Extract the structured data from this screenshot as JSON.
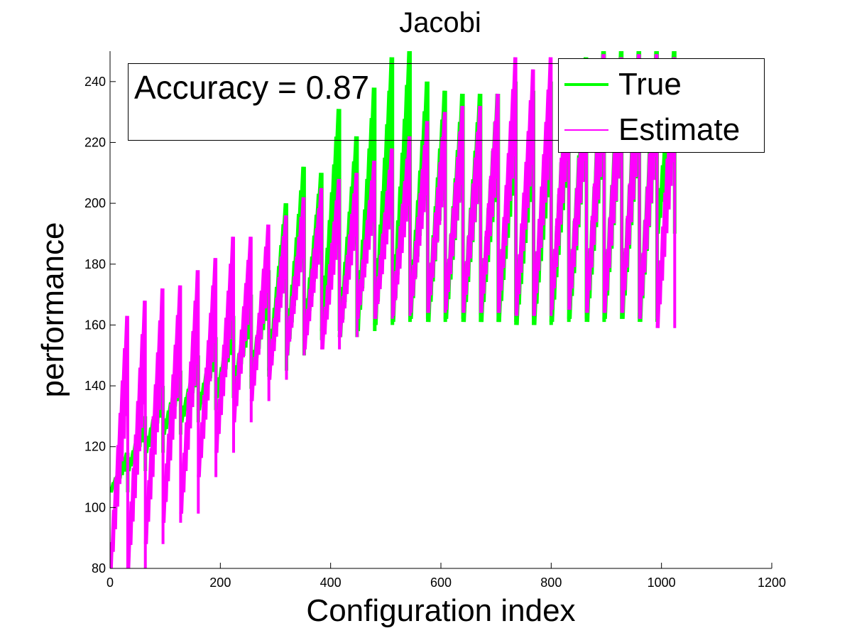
{
  "chart_data": {
    "type": "line",
    "title": "Jacobi",
    "xlabel": "Configuration index",
    "ylabel": "performance",
    "xlim": [
      0,
      1200
    ],
    "ylim": [
      80,
      250
    ],
    "xticks": [
      0,
      200,
      400,
      600,
      800,
      1000,
      1200
    ],
    "yticks": [
      80,
      100,
      120,
      140,
      160,
      180,
      200,
      220,
      240
    ],
    "grid": false,
    "legend_position": "top-right",
    "annotation": "Accuracy = 0.87",
    "colors": {
      "true": "#00ff00",
      "estimate": "#ff00ff"
    },
    "series": [
      {
        "name": "True",
        "color": "#00ff00",
        "segments": [
          {
            "start": 0,
            "end": 32,
            "low": 105,
            "high": 118
          },
          {
            "start": 32,
            "end": 64,
            "low": 112,
            "high": 130
          },
          {
            "start": 64,
            "end": 96,
            "low": 118,
            "high": 140
          },
          {
            "start": 96,
            "end": 128,
            "low": 124,
            "high": 145
          },
          {
            "start": 128,
            "end": 160,
            "low": 128,
            "high": 150
          },
          {
            "start": 160,
            "end": 192,
            "low": 132,
            "high": 156
          },
          {
            "start": 192,
            "end": 224,
            "low": 136,
            "high": 163
          },
          {
            "start": 224,
            "end": 256,
            "low": 139,
            "high": 170
          },
          {
            "start": 256,
            "end": 288,
            "low": 143,
            "high": 178
          },
          {
            "start": 288,
            "end": 320,
            "low": 145,
            "high": 200
          },
          {
            "start": 320,
            "end": 352,
            "low": 150,
            "high": 212
          },
          {
            "start": 352,
            "end": 384,
            "low": 155,
            "high": 210
          },
          {
            "start": 384,
            "end": 416,
            "low": 158,
            "high": 231
          },
          {
            "start": 416,
            "end": 448,
            "low": 156,
            "high": 222
          },
          {
            "start": 448,
            "end": 480,
            "low": 158,
            "high": 238
          },
          {
            "start": 480,
            "end": 512,
            "low": 160,
            "high": 248
          },
          {
            "start": 512,
            "end": 544,
            "low": 161,
            "high": 250
          },
          {
            "start": 544,
            "end": 576,
            "low": 162,
            "high": 240
          },
          {
            "start": 576,
            "end": 608,
            "low": 161,
            "high": 237
          },
          {
            "start": 608,
            "end": 640,
            "low": 162,
            "high": 236
          },
          {
            "start": 640,
            "end": 672,
            "low": 161,
            "high": 236
          },
          {
            "start": 672,
            "end": 704,
            "low": 161,
            "high": 236
          },
          {
            "start": 704,
            "end": 736,
            "low": 161,
            "high": 240
          },
          {
            "start": 736,
            "end": 768,
            "low": 160,
            "high": 237
          },
          {
            "start": 768,
            "end": 800,
            "low": 160,
            "high": 240
          },
          {
            "start": 800,
            "end": 832,
            "low": 161,
            "high": 245
          },
          {
            "start": 832,
            "end": 864,
            "low": 162,
            "high": 248
          },
          {
            "start": 864,
            "end": 896,
            "low": 161,
            "high": 250
          },
          {
            "start": 896,
            "end": 928,
            "low": 162,
            "high": 250
          },
          {
            "start": 928,
            "end": 960,
            "low": 162,
            "high": 250
          },
          {
            "start": 960,
            "end": 992,
            "low": 161,
            "high": 250
          },
          {
            "start": 992,
            "end": 1024,
            "low": 190,
            "high": 250
          }
        ]
      },
      {
        "name": "Estimate",
        "color": "#ff00ff",
        "segments": [
          {
            "start": 0,
            "end": 32,
            "low": 78,
            "high": 163
          },
          {
            "start": 32,
            "end": 64,
            "low": 80,
            "high": 168
          },
          {
            "start": 64,
            "end": 96,
            "low": 88,
            "high": 172
          },
          {
            "start": 96,
            "end": 128,
            "low": 95,
            "high": 173
          },
          {
            "start": 128,
            "end": 160,
            "low": 98,
            "high": 178
          },
          {
            "start": 160,
            "end": 192,
            "low": 110,
            "high": 182
          },
          {
            "start": 192,
            "end": 224,
            "low": 118,
            "high": 189
          },
          {
            "start": 224,
            "end": 256,
            "low": 128,
            "high": 189
          },
          {
            "start": 256,
            "end": 288,
            "low": 135,
            "high": 193
          },
          {
            "start": 288,
            "end": 320,
            "low": 142,
            "high": 196
          },
          {
            "start": 320,
            "end": 352,
            "low": 150,
            "high": 202
          },
          {
            "start": 352,
            "end": 384,
            "low": 152,
            "high": 205
          },
          {
            "start": 384,
            "end": 416,
            "low": 152,
            "high": 208
          },
          {
            "start": 416,
            "end": 448,
            "low": 156,
            "high": 210
          },
          {
            "start": 448,
            "end": 480,
            "low": 162,
            "high": 214
          },
          {
            "start": 480,
            "end": 512,
            "low": 162,
            "high": 218
          },
          {
            "start": 512,
            "end": 544,
            "low": 163,
            "high": 222
          },
          {
            "start": 544,
            "end": 576,
            "low": 164,
            "high": 227
          },
          {
            "start": 576,
            "end": 608,
            "low": 164,
            "high": 230
          },
          {
            "start": 608,
            "end": 640,
            "low": 165,
            "high": 232
          },
          {
            "start": 640,
            "end": 672,
            "low": 164,
            "high": 232
          },
          {
            "start": 672,
            "end": 704,
            "low": 164,
            "high": 236
          },
          {
            "start": 704,
            "end": 736,
            "low": 164,
            "high": 248
          },
          {
            "start": 736,
            "end": 768,
            "low": 163,
            "high": 244
          },
          {
            "start": 768,
            "end": 800,
            "low": 163,
            "high": 248
          },
          {
            "start": 800,
            "end": 832,
            "low": 165,
            "high": 245
          },
          {
            "start": 832,
            "end": 864,
            "low": 165,
            "high": 245
          },
          {
            "start": 864,
            "end": 896,
            "low": 164,
            "high": 249
          },
          {
            "start": 896,
            "end": 928,
            "low": 164,
            "high": 248
          },
          {
            "start": 928,
            "end": 960,
            "low": 164,
            "high": 249
          },
          {
            "start": 960,
            "end": 992,
            "low": 162,
            "high": 249
          },
          {
            "start": 992,
            "end": 1024,
            "low": 159,
            "high": 248
          }
        ]
      }
    ]
  }
}
